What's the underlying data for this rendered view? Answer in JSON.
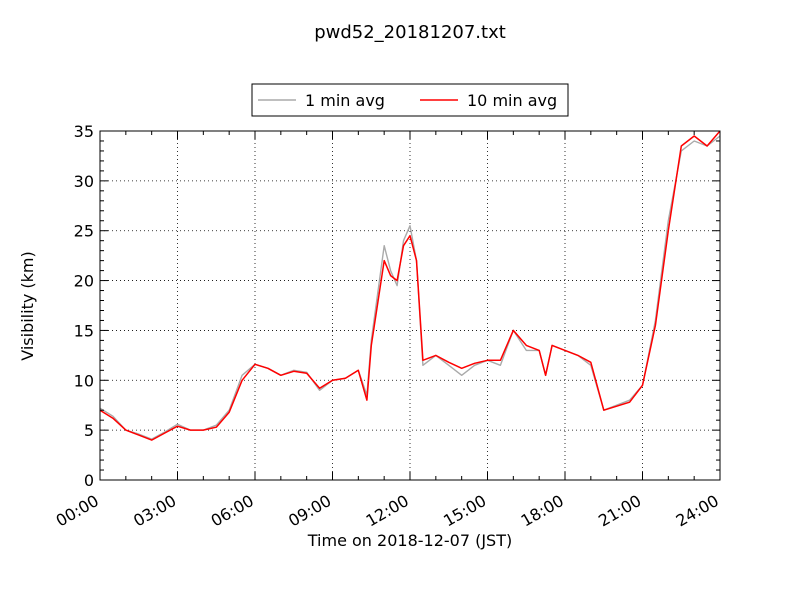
{
  "chart_data": {
    "type": "line",
    "title": "pwd52_20181207.txt",
    "xlabel": "Time on 2018-12-07 (JST)",
    "ylabel": "Visibility (km)",
    "xlim": [
      "00:00",
      "24:00"
    ],
    "ylim": [
      0,
      35
    ],
    "x_ticks": [
      "00:00",
      "03:00",
      "06:00",
      "09:00",
      "12:00",
      "15:00",
      "18:00",
      "21:00",
      "24:00"
    ],
    "y_ticks": [
      0,
      5,
      10,
      15,
      20,
      25,
      30,
      35
    ],
    "grid": true,
    "legend_position": "top-center",
    "x": [
      "00:00",
      "00:30",
      "01:00",
      "01:30",
      "02:00",
      "02:30",
      "03:00",
      "03:30",
      "04:00",
      "04:30",
      "05:00",
      "05:30",
      "06:00",
      "06:30",
      "07:00",
      "07:30",
      "08:00",
      "08:30",
      "09:00",
      "09:30",
      "10:00",
      "10:20",
      "10:30",
      "11:00",
      "11:15",
      "11:30",
      "11:45",
      "12:00",
      "12:15",
      "12:30",
      "13:00",
      "13:30",
      "14:00",
      "14:30",
      "15:00",
      "15:30",
      "16:00",
      "16:30",
      "17:00",
      "17:15",
      "17:30",
      "18:00",
      "18:30",
      "19:00",
      "19:30",
      "20:00",
      "20:30",
      "21:00",
      "21:30",
      "22:00",
      "22:30",
      "23:00",
      "23:30",
      "24:00"
    ],
    "series": [
      {
        "name": "1 min avg",
        "color": "#aaaaaa",
        "values": [
          7.2,
          6.4,
          5.0,
          4.6,
          4.1,
          4.8,
          5.6,
          5.0,
          5.0,
          5.5,
          7.0,
          10.5,
          11.6,
          11.2,
          10.5,
          11.0,
          10.8,
          9.0,
          10.0,
          10.2,
          11.0,
          8.5,
          14.0,
          23.5,
          21.0,
          19.5,
          24.0,
          25.5,
          22.0,
          11.5,
          12.5,
          11.5,
          10.5,
          11.5,
          12.0,
          11.5,
          15.0,
          13.0,
          13.0,
          10.5,
          13.5,
          13.0,
          12.5,
          11.5,
          7.0,
          7.5,
          8.0,
          9.5,
          16.0,
          26.0,
          33.0,
          34.0,
          33.5,
          34.5
        ]
      },
      {
        "name": "10 min avg",
        "color": "#ff0000",
        "values": [
          7.0,
          6.2,
          5.0,
          4.5,
          4.0,
          4.7,
          5.4,
          5.0,
          5.0,
          5.3,
          6.8,
          10.0,
          11.6,
          11.2,
          10.5,
          10.9,
          10.7,
          9.2,
          10.0,
          10.2,
          11.0,
          8.0,
          13.5,
          22.0,
          20.5,
          20.0,
          23.5,
          24.5,
          22.0,
          12.0,
          12.5,
          11.8,
          11.2,
          11.7,
          12.0,
          12.0,
          15.0,
          13.5,
          13.0,
          10.5,
          13.5,
          13.0,
          12.5,
          11.8,
          7.0,
          7.4,
          7.8,
          9.5,
          15.5,
          25.0,
          33.5,
          34.5,
          33.5,
          35.0
        ]
      }
    ]
  }
}
